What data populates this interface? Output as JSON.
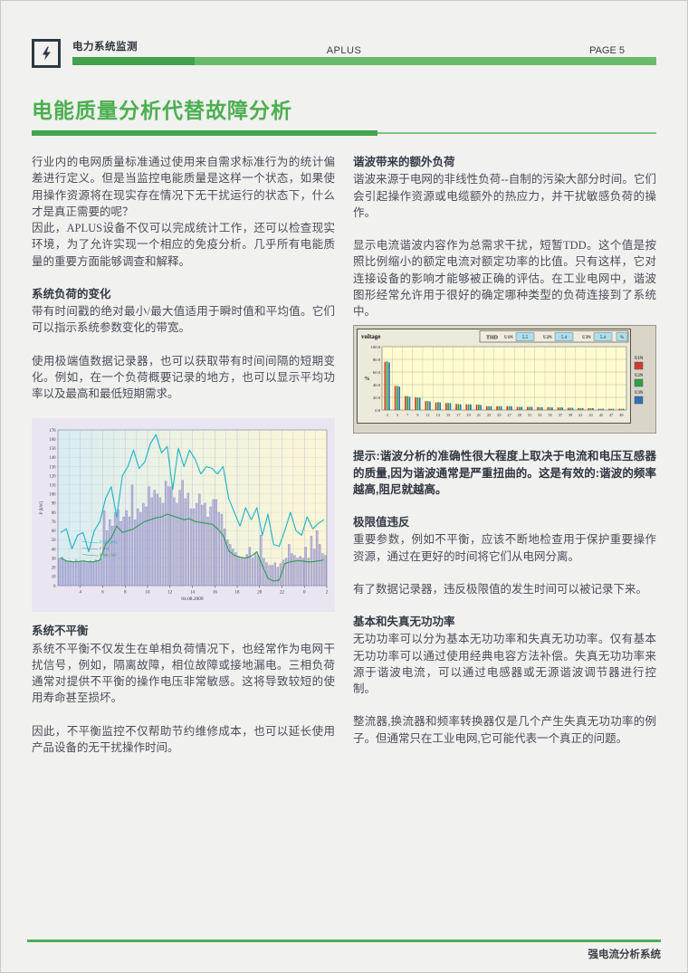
{
  "header": {
    "brand": "电力系统监测",
    "center": "APLUS",
    "page": "PAGE 5"
  },
  "title": "电能质量分析代替故障分析",
  "left": {
    "p1": "行业内的电网质量标准通过使用来自需求标准行为的统计偏差进行定义。但是当监控电能质量是这样一个状态，如果使用操作资源将在现实存在情况下无干扰运行的状态下，什么才是真正需要的呢？",
    "p2": "因此，APLUS设备不仅可以完成统计工作，还可以检查现实环境，为了允许实现一个相应的免疫分析。几乎所有电能质量的重要方面能够调查和解释。",
    "h_load": "系统负荷的变化",
    "p3": "带有时间戳的绝对最小/最大值适用于瞬时值和平均值。它们可以指示系统参数变化的带宽。",
    "p4": "使用极端值数据记录器，也可以获取带有时间间隔的短期变化。例如，在一个负荷概要记录的地方，也可以显示平均功率以及最高和最低短期需求。",
    "h_unbal": "系统不平衡",
    "p5": "系统不平衡不仅发生在单相负荷情况下，也经常作为电网干扰信号，例如，隔离故障，相位故障或接地漏电。三相负荷通常对提供不平衡的操作电压非常敏感。这将导致较短的使用寿命甚至损坏。",
    "p6": "因此，不平衡监控不仅帮助节约维修成本，也可以延长使用产品设备的无干扰操作时间。"
  },
  "right": {
    "h_harm": "谐波带来的额外负荷",
    "p1": "谐波来源于电网的非线性负荷--自制的污染大部分时间。它们会引起操作资源或电缆额外的热应力，并干扰敏感负荷的操作。",
    "p2": "显示电流谐波内容作为总需求干扰，短暂TDD。这个值是按照比例缩小的额定电流对额定功率的比值。只有这样，它对连接设备的影响才能够被正确的评估。在工业电网中，谐波图形经常允许用于很好的确定哪种类型的负荷连接到了系统中。",
    "tip": "提示:谐波分析的准确性很大程度上取决于电流和电压互感器的质量,因为谐波通常是严重扭曲的。这是有效的:谐波的频率越高,阻尼就越高。",
    "h_limit": "极限值违反",
    "p3": "重要参数，例如不平衡，应该不断地检查用于保护重要操作资源，通过在更好的时间将它们从电网分离。",
    "p4": "有了数据记录器，违反极限值的发生时间可以被记录下来。",
    "h_react": "基本和失真无功功率",
    "p5": "无功功率可以分为基本无功功率和失真无功功率。仅有基本无功功率可以通过使用经典电容方法补偿。失真无功功率来源于谐波电流，可以通过电感器或无源谐波调节器进行控制。",
    "p6": "整流器,换流器和频率转换器仅是几个产生失真无功功率的例子。但通常只在工业电网,它可能代表一个真正的问题。"
  },
  "footer": {
    "label": "强电流分析系统"
  },
  "colors": {
    "accent_green": "#4caf50",
    "bar_dark_green": "#41a24b",
    "bar_light_green": "#67bb6d",
    "chart1_bg": "#e9e6f2",
    "chart2_bg": "#d9d5c9"
  },
  "chart_data": [
    {
      "type": "bar+line",
      "title": "",
      "xlabel": "04.08.2009",
      "ylabel": "P [kW]",
      "ylim": [
        0,
        170
      ],
      "y_step": 10,
      "x_hours_span": 24,
      "x_start_hour": 2,
      "x_tick_labels": [
        "4",
        "6",
        "8",
        "10",
        "12",
        "14",
        "16",
        "18",
        "20",
        "22",
        "0",
        "2"
      ],
      "grid": true,
      "legend_position": "inside-left",
      "series": [
        {
          "name": "P Max [W]",
          "type": "line",
          "color": "#25b5c8",
          "values": [
            58,
            62,
            40,
            55,
            58,
            37,
            60,
            70,
            95,
            108,
            75,
            120,
            130,
            148,
            128,
            135,
            155,
            165,
            145,
            152,
            105,
            150,
            130,
            148,
            138,
            122,
            130,
            128,
            122,
            130,
            95,
            80,
            65,
            85,
            72,
            85,
            55,
            78,
            45,
            43,
            60,
            80,
            60,
            55,
            75,
            62,
            68,
            72
          ]
        },
        {
          "name": "P [W]",
          "type": "bar",
          "color": "#aeabda",
          "values": [
            30,
            31,
            28,
            27,
            27,
            26,
            28,
            26,
            27,
            26,
            25,
            27,
            26,
            28,
            27,
            30,
            82,
            60,
            72,
            65,
            80,
            83,
            70,
            75,
            82,
            75,
            110,
            72,
            84,
            80,
            90,
            86,
            108,
            96,
            104,
            100,
            96,
            90,
            114,
            108,
            108,
            96,
            90,
            104,
            115,
            95,
            101,
            84,
            84,
            90,
            100,
            88,
            90,
            75,
            86,
            94,
            94,
            80,
            78,
            62,
            50,
            45,
            40,
            36,
            32,
            30,
            30,
            34,
            42,
            30,
            35,
            32,
            55,
            30,
            25,
            22,
            22,
            25,
            20,
            24,
            28,
            30,
            45,
            35,
            33,
            30,
            32,
            30,
            42,
            30,
            54,
            40,
            60,
            45,
            35,
            33
          ]
        },
        {
          "name": "P Min [W]",
          "type": "line",
          "color": "#2e9e55",
          "values": [
            30,
            27,
            26,
            26,
            27,
            26,
            26,
            28,
            45,
            52,
            65,
            58,
            60,
            62,
            66,
            70,
            72,
            74,
            75,
            78,
            76,
            74,
            72,
            73,
            70,
            69,
            68,
            67,
            62,
            55,
            38,
            33,
            31,
            30,
            32,
            37,
            22,
            8,
            5,
            6,
            24,
            26,
            27,
            27,
            26,
            26,
            27,
            28
          ]
        }
      ]
    },
    {
      "type": "bar",
      "title": "voltage",
      "ylabel": "%",
      "ylim": [
        0,
        100
      ],
      "y_step": 20,
      "grid": true,
      "legend_position": "right",
      "thd": {
        "label": "THD",
        "items": [
          {
            "name": "U1N",
            "value": "5.5"
          },
          {
            "name": "U2N",
            "value": "5.4"
          },
          {
            "name": "U3N",
            "value": "5.4"
          }
        ],
        "unit": "%"
      },
      "categories": [
        3,
        5,
        7,
        9,
        11,
        13,
        15,
        17,
        19,
        21,
        23,
        25,
        27,
        29,
        31,
        33,
        35,
        37,
        39,
        41,
        43,
        45,
        47,
        49
      ],
      "series": [
        {
          "name": "U1N",
          "color": "#cf3a2e",
          "values": [
            76,
            38,
            22,
            20,
            14,
            12,
            11,
            9.5,
            9,
            8.5,
            6,
            6,
            6,
            5,
            5,
            4.5,
            4.5,
            4,
            3.5,
            3,
            3,
            2,
            2,
            2
          ]
        },
        {
          "name": "U2N",
          "color": "#2e9e4a",
          "values": [
            77,
            38,
            22,
            20,
            14,
            12.5,
            11,
            9.5,
            9,
            8.5,
            6,
            6,
            6,
            5,
            5,
            4.5,
            4.5,
            4,
            3.5,
            3,
            3,
            2,
            2,
            2
          ]
        },
        {
          "name": "U3N",
          "color": "#2f6fbd",
          "values": [
            75,
            37,
            21,
            19.5,
            13.5,
            12,
            11,
            9,
            9,
            8,
            6,
            6,
            6,
            5,
            5,
            4.5,
            4,
            4,
            3.5,
            3,
            3,
            2,
            2,
            2
          ]
        }
      ]
    }
  ]
}
